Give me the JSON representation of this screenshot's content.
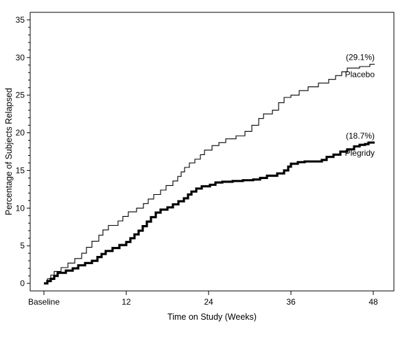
{
  "chart_data": {
    "type": "line",
    "line_shape": "step",
    "xlabel": "Time on Study (Weeks)",
    "ylabel": "Percentage of Subjects Relapsed",
    "xlim": [
      -2,
      51
    ],
    "ylim": [
      -1,
      36
    ],
    "x_ticks": [
      0,
      12,
      24,
      36,
      48
    ],
    "x_tick_labels": [
      "Baseline",
      "12",
      "24",
      "36",
      "48"
    ],
    "y_ticks": [
      0,
      5,
      10,
      15,
      20,
      25,
      30,
      35
    ],
    "y_tick_labels": [
      "0",
      "5",
      "10",
      "15",
      "20",
      "25",
      "30",
      "35"
    ],
    "grid": false,
    "series": [
      {
        "name": "Placebo",
        "color": "#000000",
        "weight": "thin",
        "end_label": "(29.1%)",
        "points": [
          [
            0,
            0
          ],
          [
            0.5,
            0.6
          ],
          [
            1,
            1.1
          ],
          [
            1.5,
            1.6
          ],
          [
            2.5,
            2.1
          ],
          [
            3.5,
            2.7
          ],
          [
            4.5,
            3.3
          ],
          [
            5.5,
            4.0
          ],
          [
            6.2,
            4.8
          ],
          [
            7,
            5.6
          ],
          [
            8,
            6.4
          ],
          [
            8.6,
            7.1
          ],
          [
            9.4,
            7.7
          ],
          [
            10.8,
            8.3
          ],
          [
            11.5,
            8.9
          ],
          [
            12.3,
            9.5
          ],
          [
            13.5,
            10.0
          ],
          [
            14.5,
            10.6
          ],
          [
            15.2,
            11.2
          ],
          [
            16,
            11.8
          ],
          [
            17,
            12.4
          ],
          [
            17.8,
            13.0
          ],
          [
            18.8,
            13.6
          ],
          [
            19.5,
            14.2
          ],
          [
            20,
            14.8
          ],
          [
            20.5,
            15.4
          ],
          [
            21.2,
            16.0
          ],
          [
            22,
            16.5
          ],
          [
            22.8,
            17.1
          ],
          [
            23.4,
            17.7
          ],
          [
            24.5,
            18.3
          ],
          [
            25.5,
            18.7
          ],
          [
            26.5,
            19.2
          ],
          [
            28,
            19.6
          ],
          [
            29.3,
            20.2
          ],
          [
            30.3,
            21.0
          ],
          [
            31.3,
            21.9
          ],
          [
            32,
            22.5
          ],
          [
            33.3,
            23.0
          ],
          [
            34.2,
            24.0
          ],
          [
            35,
            24.7
          ],
          [
            36,
            25.0
          ],
          [
            37.2,
            25.6
          ],
          [
            38.5,
            26.1
          ],
          [
            40,
            26.6
          ],
          [
            41.5,
            27.1
          ],
          [
            42.5,
            27.6
          ],
          [
            43.4,
            28.1
          ],
          [
            44.2,
            28.6
          ],
          [
            46,
            28.8
          ],
          [
            47.5,
            29.1
          ],
          [
            48.2,
            29.1
          ]
        ]
      },
      {
        "name": "Plegridy",
        "color": "#000000",
        "weight": "thick",
        "end_label": "(18.7%)",
        "points": [
          [
            0,
            0
          ],
          [
            0.5,
            0.3
          ],
          [
            1,
            0.6
          ],
          [
            1.5,
            1.0
          ],
          [
            2,
            1.4
          ],
          [
            3.2,
            1.7
          ],
          [
            4.2,
            2.0
          ],
          [
            5,
            2.4
          ],
          [
            6,
            2.7
          ],
          [
            7,
            3.0
          ],
          [
            7.8,
            3.5
          ],
          [
            8.4,
            3.9
          ],
          [
            9,
            4.3
          ],
          [
            10,
            4.7
          ],
          [
            11,
            5.1
          ],
          [
            12,
            5.5
          ],
          [
            12.6,
            6.0
          ],
          [
            13.2,
            6.5
          ],
          [
            13.8,
            7.0
          ],
          [
            14.4,
            7.6
          ],
          [
            15,
            8.2
          ],
          [
            15.6,
            8.8
          ],
          [
            16.3,
            9.4
          ],
          [
            17,
            9.8
          ],
          [
            18,
            10.1
          ],
          [
            18.8,
            10.5
          ],
          [
            19.6,
            10.9
          ],
          [
            20.4,
            11.3
          ],
          [
            21,
            11.8
          ],
          [
            21.5,
            12.2
          ],
          [
            22.2,
            12.6
          ],
          [
            23,
            12.9
          ],
          [
            24.2,
            13.1
          ],
          [
            25,
            13.4
          ],
          [
            26,
            13.5
          ],
          [
            27.5,
            13.6
          ],
          [
            29,
            13.7
          ],
          [
            30.5,
            13.8
          ],
          [
            31.5,
            14.0
          ],
          [
            32.5,
            14.3
          ],
          [
            34,
            14.6
          ],
          [
            35,
            15.0
          ],
          [
            35.6,
            15.5
          ],
          [
            36,
            15.9
          ],
          [
            37,
            16.1
          ],
          [
            38,
            16.2
          ],
          [
            40.5,
            16.4
          ],
          [
            41.2,
            16.8
          ],
          [
            42.2,
            17.1
          ],
          [
            43.2,
            17.5
          ],
          [
            44.2,
            17.8
          ],
          [
            45.2,
            18.2
          ],
          [
            46,
            18.4
          ],
          [
            46.8,
            18.5
          ],
          [
            47.3,
            18.7
          ],
          [
            48.2,
            18.7
          ]
        ]
      }
    ]
  }
}
